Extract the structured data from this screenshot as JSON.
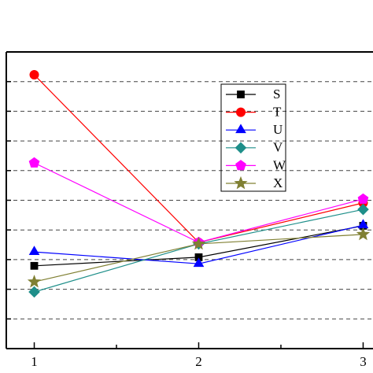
{
  "chart_data": {
    "type": "line",
    "x": [
      1,
      2,
      3
    ],
    "xlim": [
      0.83,
      3.06
    ],
    "xticks": [
      1,
      2,
      3
    ],
    "ylim": [
      0,
      10
    ],
    "yticks": [
      1,
      2,
      3,
      4,
      5,
      6,
      7,
      8,
      9
    ],
    "grid": true,
    "legend": "upper-right",
    "series": [
      {
        "name": "S",
        "color": "#000000",
        "marker": "square",
        "values": [
          2.79,
          3.08,
          4.14
        ]
      },
      {
        "name": "T",
        "color": "#ff0000",
        "marker": "circle",
        "values": [
          9.23,
          3.58,
          4.91
        ]
      },
      {
        "name": "U",
        "color": "#0000ff",
        "marker": "triangle",
        "values": [
          3.26,
          2.86,
          4.16
        ]
      },
      {
        "name": "V",
        "color": "#1f8f8a",
        "marker": "diamond",
        "values": [
          1.91,
          3.53,
          4.69
        ]
      },
      {
        "name": "W",
        "color": "#ff00ff",
        "marker": "pentagon",
        "values": [
          6.26,
          3.58,
          5.04
        ]
      },
      {
        "name": "X",
        "color": "#808033",
        "marker": "star",
        "values": [
          2.25,
          3.53,
          3.85
        ]
      }
    ]
  }
}
